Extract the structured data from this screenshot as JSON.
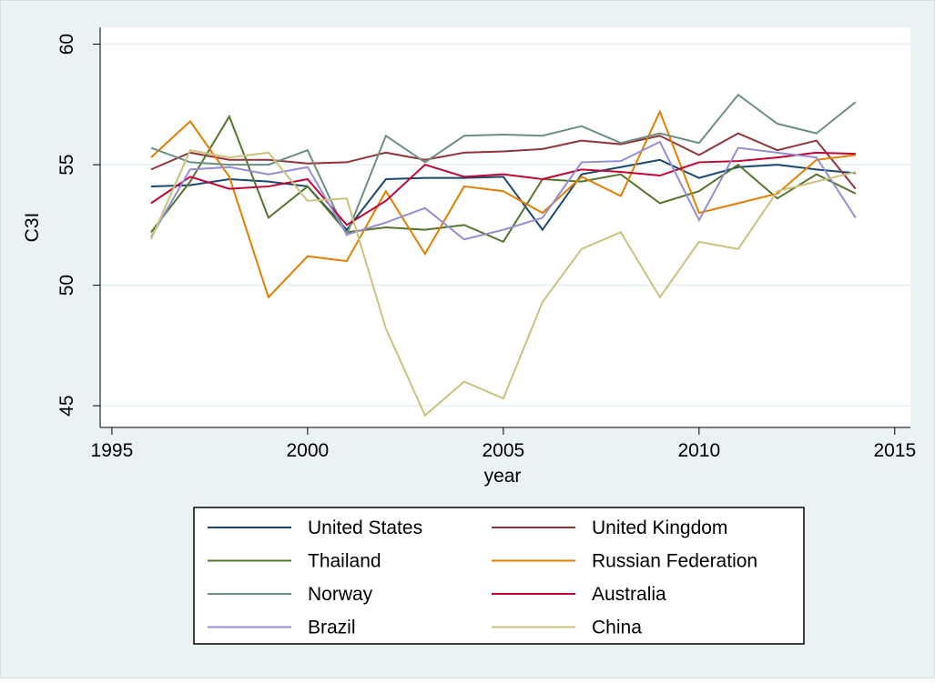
{
  "chart_data": {
    "type": "line",
    "x": [
      1996,
      1997,
      1998,
      1999,
      2000,
      2001,
      2002,
      2003,
      2004,
      2005,
      2006,
      2007,
      2008,
      2009,
      2010,
      2011,
      2012,
      2013,
      2014
    ],
    "x_label": "year",
    "y_label": "C3I",
    "xlim": [
      1994.7,
      2015.4
    ],
    "xticks": [
      1995,
      2000,
      2005,
      2010,
      2015
    ],
    "ylim": [
      44.1,
      60.7
    ],
    "yticks": [
      45,
      50,
      55,
      60
    ],
    "grid": true,
    "series": [
      {
        "name": "United States",
        "color": "#1a476f",
        "values": [
          54.1,
          54.15,
          54.4,
          54.3,
          54.1,
          52.3,
          54.4,
          54.45,
          54.45,
          54.5,
          52.3,
          54.6,
          54.9,
          55.2,
          54.45,
          54.9,
          55.0,
          54.8,
          54.65
        ]
      },
      {
        "name": "United Kingdom",
        "color": "#90353b",
        "values": [
          54.8,
          55.5,
          55.2,
          55.2,
          55.05,
          55.1,
          55.5,
          55.2,
          55.5,
          55.55,
          55.65,
          56.0,
          55.85,
          56.2,
          55.4,
          56.3,
          55.6,
          56.0,
          54.0
        ]
      },
      {
        "name": "Thailand",
        "color": "#55752f",
        "values": [
          52.2,
          54.3,
          57.0,
          52.8,
          54.1,
          52.2,
          52.4,
          52.3,
          52.5,
          51.8,
          54.4,
          54.3,
          54.6,
          53.4,
          53.9,
          55.0,
          53.6,
          54.6,
          53.8
        ]
      },
      {
        "name": "Russian Federation",
        "color": "#e37e00",
        "values": [
          55.3,
          56.8,
          54.5,
          49.5,
          51.2,
          51.0,
          53.9,
          51.3,
          54.1,
          53.9,
          53.0,
          54.5,
          53.7,
          57.2,
          53.0,
          53.4,
          53.8,
          55.2,
          55.4
        ]
      },
      {
        "name": "Norway",
        "color": "#6e8e84",
        "values": [
          55.7,
          55.1,
          55.0,
          55.0,
          55.6,
          52.1,
          56.2,
          55.1,
          56.2,
          56.25,
          56.2,
          56.6,
          55.9,
          56.3,
          55.9,
          57.9,
          56.7,
          56.3,
          57.6
        ]
      },
      {
        "name": "Australia",
        "color": "#c10534",
        "values": [
          53.4,
          54.5,
          54.0,
          54.1,
          54.4,
          52.5,
          53.5,
          55.0,
          54.5,
          54.6,
          54.4,
          54.8,
          54.7,
          54.55,
          55.1,
          55.15,
          55.3,
          55.5,
          55.45
        ]
      },
      {
        "name": "Brazil",
        "color": "#938dd2",
        "values": [
          52.0,
          54.8,
          54.9,
          54.6,
          54.9,
          52.1,
          52.6,
          53.2,
          51.9,
          52.3,
          52.8,
          55.1,
          55.15,
          55.95,
          52.7,
          55.7,
          55.5,
          55.3,
          52.8
        ]
      },
      {
        "name": "China",
        "color": "#cac27e",
        "values": [
          51.9,
          55.6,
          55.3,
          55.5,
          53.5,
          53.6,
          48.2,
          44.6,
          46.0,
          45.3,
          49.3,
          51.5,
          52.2,
          49.5,
          51.8,
          51.5,
          53.9,
          54.3,
          54.7
        ]
      }
    ]
  }
}
